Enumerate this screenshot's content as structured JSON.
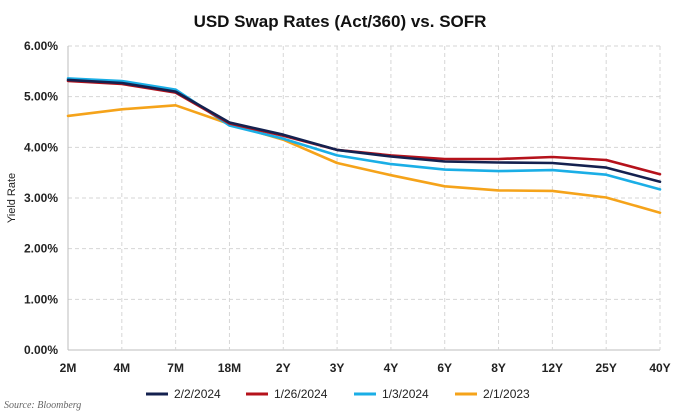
{
  "chart_data": {
    "type": "line",
    "title": "USD Swap Rates (Act/360) vs. SOFR",
    "xlabel": "",
    "ylabel": "Yield Rate",
    "ylim": [
      0,
      6
    ],
    "yticks": [
      "0.00%",
      "1.00%",
      "2.00%",
      "3.00%",
      "4.00%",
      "5.00%",
      "6.00%"
    ],
    "categories": [
      "2M",
      "4M",
      "7M",
      "18M",
      "2Y",
      "3Y",
      "4Y",
      "6Y",
      "8Y",
      "12Y",
      "25Y",
      "40Y"
    ],
    "grid": true,
    "legend_position": "bottom",
    "series": [
      {
        "name": "2/2/2024",
        "color": "#14214f",
        "values": [
          5.33,
          5.27,
          5.1,
          4.49,
          4.25,
          3.95,
          3.82,
          3.72,
          3.7,
          3.69,
          3.6,
          3.32
        ]
      },
      {
        "name": "1/26/2024",
        "color": "#b5121b",
        "values": [
          5.31,
          5.25,
          5.08,
          4.47,
          4.23,
          3.95,
          3.84,
          3.77,
          3.77,
          3.81,
          3.75,
          3.47
        ]
      },
      {
        "name": "1/3/2024",
        "color": "#1aaee6",
        "values": [
          5.36,
          5.31,
          5.14,
          4.43,
          4.17,
          3.84,
          3.67,
          3.56,
          3.53,
          3.55,
          3.46,
          3.17
        ]
      },
      {
        "name": "2/1/2023",
        "color": "#f5a31a",
        "values": [
          4.62,
          4.75,
          4.83,
          4.46,
          4.15,
          3.69,
          3.45,
          3.23,
          3.15,
          3.14,
          3.01,
          2.71
        ]
      }
    ]
  },
  "source": "Source: Bloomberg"
}
